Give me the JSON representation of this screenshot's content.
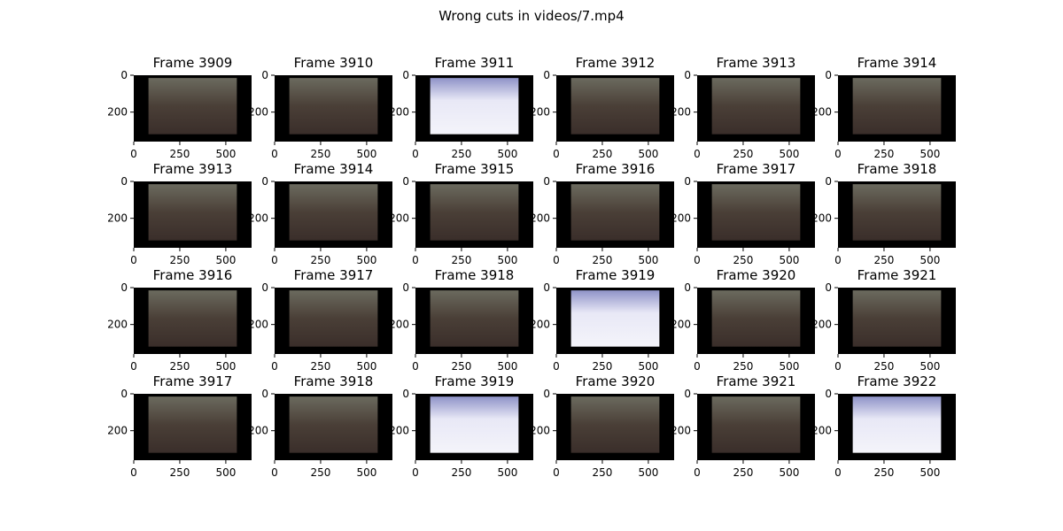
{
  "title": "Wrong cuts in videos/7.mp4",
  "axes": {
    "xlim": [
      0,
      640
    ],
    "ylim": [
      360,
      0
    ],
    "xticks": [
      0,
      250,
      500
    ],
    "yticks": [
      0,
      200
    ]
  },
  "panels": [
    {
      "title": "Frame 3909"
    },
    {
      "title": "Frame 3910"
    },
    {
      "title": "Frame 3911"
    },
    {
      "title": "Frame 3912"
    },
    {
      "title": "Frame 3913"
    },
    {
      "title": "Frame 3914"
    },
    {
      "title": "Frame 3913"
    },
    {
      "title": "Frame 3914"
    },
    {
      "title": "Frame 3915"
    },
    {
      "title": "Frame 3916"
    },
    {
      "title": "Frame 3917"
    },
    {
      "title": "Frame 3918"
    },
    {
      "title": "Frame 3916"
    },
    {
      "title": "Frame 3917"
    },
    {
      "title": "Frame 3918"
    },
    {
      "title": "Frame 3919"
    },
    {
      "title": "Frame 3920"
    },
    {
      "title": "Frame 3921"
    },
    {
      "title": "Frame 3917"
    },
    {
      "title": "Frame 3918"
    },
    {
      "title": "Frame 3919"
    },
    {
      "title": "Frame 3920"
    },
    {
      "title": "Frame 3921"
    },
    {
      "title": "Frame 3922"
    }
  ]
}
